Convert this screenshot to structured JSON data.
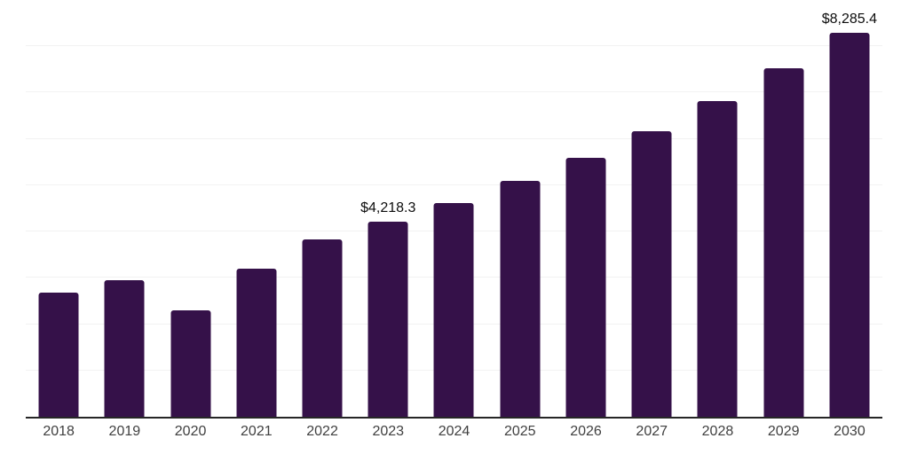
{
  "chart_data": {
    "type": "bar",
    "title": "",
    "xlabel": "",
    "ylabel": "",
    "categories": [
      "2018",
      "2019",
      "2020",
      "2021",
      "2022",
      "2023",
      "2024",
      "2025",
      "2026",
      "2027",
      "2028",
      "2029",
      "2030"
    ],
    "values": [
      2680,
      2940,
      2290,
      3190,
      3830,
      4218.3,
      4620,
      5090,
      5600,
      6170,
      6810,
      7520,
      8285.4
    ],
    "value_labels": {
      "2023": "$4,218.3",
      "2030": "$8,285.4"
    },
    "ylim": [
      0,
      9000
    ],
    "gridline_step": 1000,
    "grid": "horizontal",
    "legend": "none",
    "colors": {
      "bar": "#351149",
      "gridline": "#f2f2f2",
      "axis_line": "#262626",
      "tick_label": "#404040",
      "data_label": "#0d0d0d",
      "background": "#ffffff"
    }
  }
}
